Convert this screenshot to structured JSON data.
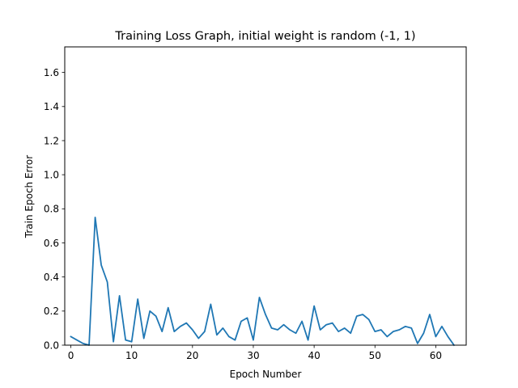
{
  "chart_data": {
    "type": "line",
    "title": "Training Loss Graph, initial weight is random (-1, 1)",
    "xlabel": "Epoch Number",
    "ylabel": "Train Epoch Error",
    "xlim": [
      -1,
      65
    ],
    "ylim": [
      0,
      1.75
    ],
    "xticks": [
      0,
      10,
      20,
      30,
      40,
      50,
      60
    ],
    "yticks": [
      0.0,
      0.2,
      0.4,
      0.6,
      0.8,
      1.0,
      1.2,
      1.4,
      1.6
    ],
    "ytick_labels": [
      "0.0",
      "0.2",
      "0.4",
      "0.6",
      "0.8",
      "1.0",
      "1.2",
      "1.4",
      "1.6"
    ],
    "grid": false,
    "line_color": "#1f77b4",
    "series": [
      {
        "x": [
          0,
          1,
          2,
          3,
          4,
          5,
          6,
          7,
          8,
          9,
          10,
          11,
          12,
          13,
          14,
          15,
          16,
          17,
          18,
          19,
          20,
          21,
          22,
          23,
          24,
          25,
          26,
          27,
          28,
          29,
          30,
          31,
          32,
          33,
          34,
          35,
          36,
          37,
          38,
          39,
          40,
          41,
          42,
          43,
          44,
          45,
          46,
          47,
          48,
          49,
          50,
          51,
          52,
          53,
          54,
          55,
          56,
          57,
          58,
          59,
          60,
          61,
          62,
          63
        ],
        "values": [
          0.05,
          0.03,
          0.01,
          0.0,
          0.75,
          0.47,
          0.37,
          0.02,
          0.29,
          0.03,
          0.02,
          0.27,
          0.04,
          0.2,
          0.17,
          0.08,
          0.22,
          0.08,
          0.11,
          0.13,
          0.09,
          0.04,
          0.08,
          0.24,
          0.06,
          0.1,
          0.05,
          0.03,
          0.14,
          0.16,
          0.03,
          0.28,
          0.18,
          0.1,
          0.09,
          0.12,
          0.09,
          0.07,
          0.14,
          0.03,
          0.23,
          0.09,
          0.12,
          0.13,
          0.08,
          0.1,
          0.07,
          0.17,
          0.18,
          0.15,
          0.08,
          0.09,
          0.05,
          0.08,
          0.09,
          0.11,
          0.1,
          0.01,
          0.07,
          0.18,
          0.05,
          0.11,
          0.05,
          0.0
        ]
      }
    ]
  }
}
